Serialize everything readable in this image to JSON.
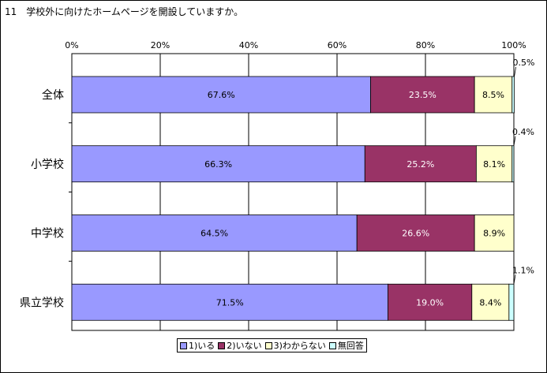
{
  "title": "11　学校外に向けたホームページを開設していますか。",
  "chart_data": {
    "type": "bar",
    "orientation": "horizontal",
    "stacked": true,
    "title": "11　学校外に向けたホームページを開設していますか。",
    "categories": [
      "全体",
      "小学校",
      "中学校",
      "県立学校"
    ],
    "x_tick_labels": [
      "0%",
      "20%",
      "40%",
      "60%",
      "80%",
      "100%"
    ],
    "xlim": [
      0,
      100
    ],
    "grid": true,
    "legend_position": "bottom",
    "series": [
      {
        "name": "1)いる",
        "color": "#9999ff",
        "label_color": "#000000",
        "values": [
          67.6,
          66.3,
          64.5,
          71.5
        ],
        "labels": [
          "67.6%",
          "66.3%",
          "64.5%",
          "71.5%"
        ]
      },
      {
        "name": "2)いない",
        "color": "#993366",
        "label_color": "#ffffff",
        "values": [
          23.5,
          25.2,
          26.6,
          19.0
        ],
        "labels": [
          "23.5%",
          "25.2%",
          "26.6%",
          "19.0%"
        ]
      },
      {
        "name": "3)わからない",
        "color": "#ffffcc",
        "label_color": "#000000",
        "values": [
          8.5,
          8.1,
          8.9,
          8.4
        ],
        "labels": [
          "8.5%",
          "8.1%",
          "8.9%",
          "8.4%"
        ]
      },
      {
        "name": "無回答",
        "color": "#ccffff",
        "label_color": "#000000",
        "values": [
          0.5,
          0.4,
          0.0,
          1.1
        ],
        "labels": [
          "0.5%",
          "0.4%",
          "",
          "1.1%"
        ]
      }
    ]
  }
}
